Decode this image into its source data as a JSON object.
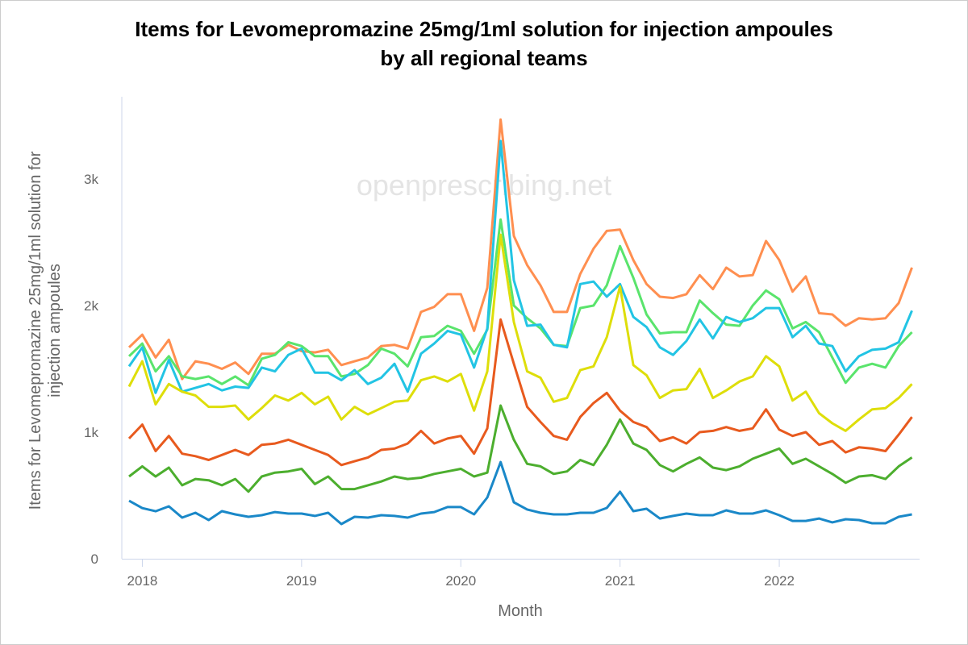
{
  "chart_data": {
    "type": "line",
    "title_lines": [
      "Items for Levomepromazine 25mg/1ml solution for injection ampoules",
      "by all regional teams"
    ],
    "xlabel": "Month",
    "ylabel_lines": [
      "Items for Levomepromazine 25mg/1ml solution for",
      "injection ampoules"
    ],
    "watermark": "openprescribing.net",
    "x_start": "2017-12",
    "x_end": "2022-11",
    "x_ticks": [
      "2018",
      "2019",
      "2020",
      "2021",
      "2022"
    ],
    "y_ticks": [
      "0",
      "1k",
      "2k",
      "3k"
    ],
    "y_tick_values": [
      0,
      1000,
      2000,
      3000
    ],
    "ylim": [
      0,
      3650
    ],
    "grid": false,
    "legend": "none",
    "series": [
      {
        "color": "#ff8f50",
        "values": [
          1670,
          1770,
          1590,
          1730,
          1420,
          1560,
          1540,
          1500,
          1550,
          1460,
          1620,
          1620,
          1690,
          1640,
          1630,
          1650,
          1530,
          1560,
          1590,
          1680,
          1690,
          1660,
          1950,
          1990,
          2090,
          2090,
          1800,
          2140,
          3470,
          2550,
          2320,
          2160,
          1950,
          1950,
          2250,
          2450,
          2590,
          2600,
          2360,
          2170,
          2070,
          2060,
          2090,
          2240,
          2130,
          2300,
          2230,
          2240,
          2510,
          2360,
          2110,
          2230,
          1940,
          1930,
          1840,
          1900,
          1890,
          1900,
          2020,
          2300
        ]
      },
      {
        "color": "#5ae46c",
        "values": [
          1600,
          1700,
          1480,
          1600,
          1440,
          1420,
          1440,
          1380,
          1440,
          1370,
          1580,
          1610,
          1710,
          1680,
          1600,
          1600,
          1440,
          1460,
          1530,
          1660,
          1620,
          1520,
          1750,
          1760,
          1840,
          1800,
          1620,
          1810,
          2680,
          2000,
          1900,
          1820,
          1690,
          1680,
          1980,
          2000,
          2160,
          2470,
          2220,
          1930,
          1780,
          1790,
          1790,
          2040,
          1940,
          1850,
          1840,
          2000,
          2120,
          2050,
          1820,
          1870,
          1790,
          1590,
          1390,
          1510,
          1540,
          1510,
          1680,
          1790
        ]
      },
      {
        "color": "#22c4e4",
        "values": [
          1520,
          1670,
          1310,
          1570,
          1320,
          1350,
          1380,
          1330,
          1360,
          1350,
          1510,
          1480,
          1610,
          1660,
          1470,
          1470,
          1410,
          1490,
          1380,
          1430,
          1540,
          1320,
          1620,
          1700,
          1800,
          1770,
          1510,
          1820,
          3300,
          2200,
          1840,
          1850,
          1690,
          1670,
          2170,
          2190,
          2070,
          2170,
          1910,
          1830,
          1670,
          1610,
          1720,
          1890,
          1740,
          1910,
          1870,
          1900,
          1980,
          1980,
          1750,
          1840,
          1700,
          1680,
          1480,
          1600,
          1650,
          1660,
          1710,
          1960
        ]
      },
      {
        "color": "#dede0a",
        "values": [
          1360,
          1560,
          1220,
          1380,
          1320,
          1290,
          1200,
          1200,
          1210,
          1100,
          1190,
          1290,
          1250,
          1310,
          1220,
          1280,
          1100,
          1200,
          1140,
          1190,
          1240,
          1250,
          1410,
          1440,
          1400,
          1460,
          1170,
          1480,
          2560,
          1870,
          1480,
          1430,
          1240,
          1270,
          1490,
          1520,
          1750,
          2150,
          1530,
          1450,
          1270,
          1330,
          1340,
          1500,
          1270,
          1330,
          1400,
          1440,
          1600,
          1520,
          1250,
          1320,
          1150,
          1070,
          1010,
          1100,
          1180,
          1190,
          1270,
          1380
        ]
      },
      {
        "color": "#e85a1e",
        "values": [
          950,
          1060,
          850,
          970,
          830,
          810,
          780,
          820,
          860,
          820,
          900,
          910,
          940,
          900,
          860,
          820,
          740,
          770,
          800,
          860,
          870,
          910,
          1010,
          910,
          950,
          970,
          830,
          1030,
          1890,
          1540,
          1200,
          1080,
          970,
          940,
          1120,
          1230,
          1310,
          1170,
          1080,
          1040,
          930,
          960,
          910,
          1000,
          1010,
          1040,
          1010,
          1030,
          1180,
          1020,
          970,
          1000,
          900,
          930,
          840,
          880,
          870,
          850,
          980,
          1120
        ]
      },
      {
        "color": "#4cae2e",
        "values": [
          650,
          730,
          650,
          720,
          580,
          630,
          620,
          580,
          630,
          530,
          650,
          680,
          690,
          710,
          590,
          650,
          550,
          550,
          580,
          610,
          650,
          630,
          640,
          670,
          690,
          710,
          650,
          680,
          1210,
          940,
          750,
          730,
          670,
          690,
          780,
          740,
          900,
          1100,
          910,
          860,
          740,
          690,
          750,
          800,
          720,
          700,
          730,
          790,
          830,
          870,
          750,
          790,
          730,
          670,
          600,
          650,
          660,
          630,
          730,
          800
        ]
      },
      {
        "color": "#1a88c8",
        "values": [
          458,
          400,
          375,
          414,
          325,
          363,
          306,
          376,
          350,
          331,
          344,
          369,
          357,
          357,
          338,
          363,
          274,
          331,
          325,
          344,
          338,
          325,
          357,
          369,
          408,
          408,
          350,
          484,
          764,
          446,
          389,
          363,
          350,
          350,
          363,
          363,
          401,
          529,
          376,
          395,
          318,
          338,
          357,
          344,
          344,
          382,
          357,
          357,
          382,
          344,
          299,
          299,
          318,
          287,
          312,
          306,
          280,
          280,
          331,
          350
        ]
      }
    ]
  }
}
